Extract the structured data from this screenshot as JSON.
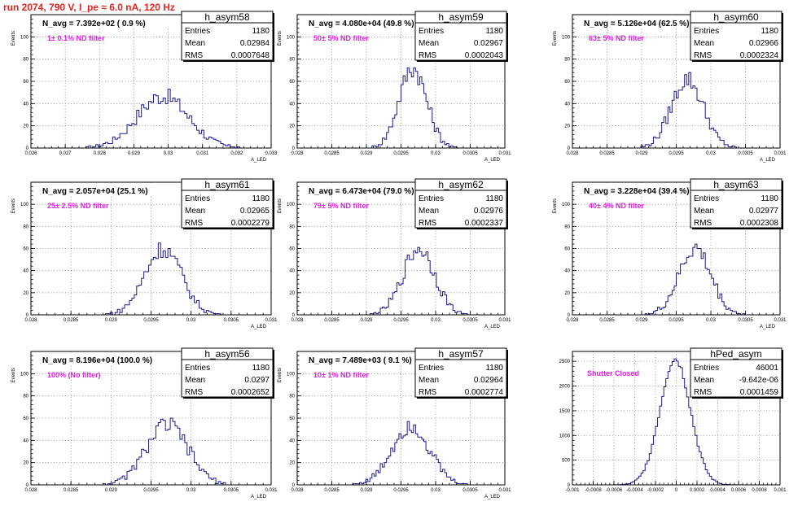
{
  "title": "run 2074,   790 V, I_pe ≈ 6.0 nA, 120 Hz",
  "colors": {
    "title": "#e8231f",
    "histogram": "#1a1a8c",
    "annotation": "#e01ee0"
  },
  "chart_data": [
    {
      "type": "histogram",
      "name": "h_asym58",
      "ylabel": "Events",
      "xlabel": "A_LED",
      "navg": "N_avg = 7.392e+02 ( 0.9 %)",
      "filter": "1± 0.1% ND filter",
      "stats": [
        [
          "Entries",
          "1180"
        ],
        [
          "Mean",
          "0.02984"
        ],
        [
          "RMS",
          "0.0007648"
        ]
      ],
      "xlim": [
        0.026,
        0.033
      ],
      "ylim": [
        0,
        120
      ],
      "xticks": [
        0.026,
        0.027,
        0.028,
        0.029,
        0.03,
        0.031,
        0.032,
        0.033
      ],
      "xtick_labels": [
        "0.026",
        "0.027",
        "0.028",
        "0.029",
        "0.03",
        "0.031",
        "0.032",
        "0.033"
      ],
      "yticks": [
        0,
        20,
        40,
        60,
        80,
        100
      ],
      "ytick_labels": [
        "0",
        "20",
        "40",
        "60",
        "80",
        "100"
      ],
      "shape": {
        "mean": 0.02984,
        "sigma": 0.00075,
        "peak": 47
      }
    },
    {
      "type": "histogram",
      "name": "h_asym59",
      "ylabel": "Events",
      "xlabel": "A_LED",
      "navg": "N_avg = 4.080e+04 (49.8 %)",
      "filter": "50± 5% ND filter",
      "stats": [
        [
          "Entries",
          "1180"
        ],
        [
          "Mean",
          "0.02967"
        ],
        [
          "RMS",
          "0.0002043"
        ]
      ],
      "xlim": [
        0.028,
        0.031
      ],
      "ylim": [
        0,
        120
      ],
      "xticks": [
        0.028,
        0.0285,
        0.029,
        0.0295,
        0.03,
        0.0305,
        0.031
      ],
      "xtick_labels": [
        "0.028",
        "0.0285",
        "0.029",
        "0.0295",
        "0.03",
        "0.0305",
        "0.031"
      ],
      "yticks": [
        0,
        20,
        40,
        60,
        80,
        100
      ],
      "ytick_labels": [
        "0",
        "20",
        "40",
        "60",
        "80",
        "100"
      ],
      "shape": {
        "mean": 0.02967,
        "sigma": 0.0002,
        "peak": 72
      }
    },
    {
      "type": "histogram",
      "name": "h_asym60",
      "ylabel": "Events",
      "xlabel": "A_LED",
      "navg": "N_avg = 5.126e+04 (62.5 %)",
      "filter": "63± 5% ND filter",
      "stats": [
        [
          "Entries",
          "1180"
        ],
        [
          "Mean",
          "0.02966"
        ],
        [
          "RMS",
          "0.0002324"
        ]
      ],
      "xlim": [
        0.028,
        0.031
      ],
      "ylim": [
        0,
        120
      ],
      "xticks": [
        0.028,
        0.0285,
        0.029,
        0.0295,
        0.03,
        0.0305,
        0.031
      ],
      "xtick_labels": [
        "0.028",
        "0.0285",
        "0.029",
        "0.0295",
        "0.03",
        "0.0305",
        "0.031"
      ],
      "yticks": [
        0,
        20,
        40,
        60,
        80,
        100
      ],
      "ytick_labels": [
        "0",
        "20",
        "40",
        "60",
        "80",
        "100"
      ],
      "shape": {
        "mean": 0.02966,
        "sigma": 0.00023,
        "peak": 62
      }
    },
    {
      "type": "histogram",
      "name": "h_asym61",
      "ylabel": "Events",
      "xlabel": "A_LED",
      "navg": "N_avg = 2.057e+04 (25.1 %)",
      "filter": "25± 2.5% ND filter",
      "stats": [
        [
          "Entries",
          "1180"
        ],
        [
          "Mean",
          "0.02965"
        ],
        [
          "RMS",
          "0.0002279"
        ]
      ],
      "xlim": [
        0.028,
        0.031
      ],
      "ylim": [
        0,
        120
      ],
      "xticks": [
        0.028,
        0.0285,
        0.029,
        0.0295,
        0.03,
        0.0305,
        0.031
      ],
      "xtick_labels": [
        "0.028",
        "0.0285",
        "0.029",
        "0.0295",
        "0.03",
        "0.0305",
        "0.031"
      ],
      "yticks": [
        0,
        20,
        40,
        60,
        80,
        100
      ],
      "ytick_labels": [
        "0",
        "20",
        "40",
        "60",
        "80",
        "100"
      ],
      "shape": {
        "mean": 0.02965,
        "sigma": 0.00023,
        "peak": 60
      }
    },
    {
      "type": "histogram",
      "name": "h_asym62",
      "ylabel": "Events",
      "xlabel": "A_LED",
      "navg": "N_avg = 6.473e+04 (79.0 %)",
      "filter": "79± 5% ND filter",
      "stats": [
        [
          "Entries",
          "1180"
        ],
        [
          "Mean",
          "0.02976"
        ],
        [
          "RMS",
          "0.0002337"
        ]
      ],
      "xlim": [
        0.028,
        0.031
      ],
      "ylim": [
        0,
        120
      ],
      "xticks": [
        0.028,
        0.0285,
        0.029,
        0.0295,
        0.03,
        0.0305,
        0.031
      ],
      "xtick_labels": [
        "0.028",
        "0.0285",
        "0.029",
        "0.0295",
        "0.03",
        "0.0305",
        "0.031"
      ],
      "yticks": [
        0,
        20,
        40,
        60,
        80,
        100
      ],
      "ytick_labels": [
        "0",
        "20",
        "40",
        "60",
        "80",
        "100"
      ],
      "shape": {
        "mean": 0.02976,
        "sigma": 0.00023,
        "peak": 60
      }
    },
    {
      "type": "histogram",
      "name": "h_asym63",
      "ylabel": "Events",
      "xlabel": "A_LED",
      "navg": "N_avg = 3.228e+04 (39.4 %)",
      "filter": "40± 4% ND filter",
      "stats": [
        [
          "Entries",
          "1180"
        ],
        [
          "Mean",
          "0.02977"
        ],
        [
          "RMS",
          "0.0002308"
        ]
      ],
      "xlim": [
        0.028,
        0.031
      ],
      "ylim": [
        0,
        120
      ],
      "xticks": [
        0.028,
        0.0285,
        0.029,
        0.0295,
        0.03,
        0.0305,
        0.031
      ],
      "xtick_labels": [
        "0.028",
        "0.0285",
        "0.029",
        "0.0295",
        "0.03",
        "0.0305",
        "0.031"
      ],
      "yticks": [
        0,
        20,
        40,
        60,
        80,
        100
      ],
      "ytick_labels": [
        "0",
        "20",
        "40",
        "60",
        "80",
        "100"
      ],
      "shape": {
        "mean": 0.02977,
        "sigma": 0.00023,
        "peak": 60
      }
    },
    {
      "type": "histogram",
      "name": "h_asym56",
      "ylabel": "Events",
      "xlabel": "A_LED",
      "navg": "N_avg = 8.196e+04 (100.0 %)",
      "filter": "100% (No filter)",
      "stats": [
        [
          "Entries",
          "1180"
        ],
        [
          "Mean",
          "0.0297"
        ],
        [
          "RMS",
          "0.0002652"
        ]
      ],
      "xlim": [
        0.028,
        0.031
      ],
      "ylim": [
        0,
        120
      ],
      "xticks": [
        0.028,
        0.0285,
        0.029,
        0.0295,
        0.03,
        0.0305,
        0.031
      ],
      "xtick_labels": [
        "0.028",
        "0.0285",
        "0.029",
        "0.0295",
        "0.03",
        "0.0305",
        "0.031"
      ],
      "yticks": [
        0,
        20,
        40,
        60,
        80,
        100
      ],
      "ytick_labels": [
        "0",
        "20",
        "40",
        "60",
        "80",
        "100"
      ],
      "shape": {
        "mean": 0.0297,
        "sigma": 0.00026,
        "peak": 54
      }
    },
    {
      "type": "histogram",
      "name": "h_asym57",
      "ylabel": "Events",
      "xlabel": "A_LED",
      "navg": "N_avg = 7.489e+03 ( 9.1 %)",
      "filter": "10± 1% ND filter",
      "stats": [
        [
          "Entries",
          "1180"
        ],
        [
          "Mean",
          "0.02964"
        ],
        [
          "RMS",
          "0.0002774"
        ]
      ],
      "xlim": [
        0.028,
        0.031
      ],
      "ylim": [
        0,
        120
      ],
      "xticks": [
        0.028,
        0.0285,
        0.029,
        0.0295,
        0.03,
        0.0305,
        0.031
      ],
      "xtick_labels": [
        "0.028",
        "0.0285",
        "0.029",
        "0.0295",
        "0.03",
        "0.0305",
        "0.031"
      ],
      "yticks": [
        0,
        20,
        40,
        60,
        80,
        100
      ],
      "ytick_labels": [
        "0",
        "20",
        "40",
        "60",
        "80",
        "100"
      ],
      "shape": {
        "mean": 0.02964,
        "sigma": 0.00027,
        "peak": 54
      }
    },
    {
      "type": "histogram",
      "name": "hPed_asym",
      "ylabel": "",
      "xlabel": "",
      "navg": "",
      "filter": "Shutter Closed",
      "stats": [
        [
          "Entries",
          "46001"
        ],
        [
          "Mean",
          "-9.642e-06"
        ],
        [
          "RMS",
          "0.0001459"
        ]
      ],
      "xlim": [
        -0.001,
        0.001
      ],
      "ylim": [
        0,
        2700
      ],
      "xticks": [
        -0.001,
        -0.0008,
        -0.0006,
        -0.0004,
        -0.0002,
        0,
        0.0002,
        0.0004,
        0.0006,
        0.0008,
        0.001
      ],
      "xtick_labels": [
        "-0.001",
        "-0.0008",
        "-0.0006",
        "-0.0004",
        "-0.0002",
        "0",
        "0.0002",
        "0.0004",
        "0.0006",
        "0.0008",
        "0.001"
      ],
      "yticks": [
        0,
        500,
        1000,
        1500,
        2000,
        2500
      ],
      "ytick_labels": [
        "0",
        "500",
        "1000",
        "1500",
        "2000",
        "2500"
      ],
      "shape": {
        "mean": -1e-05,
        "sigma": 0.000146,
        "peak": 2550
      }
    }
  ]
}
